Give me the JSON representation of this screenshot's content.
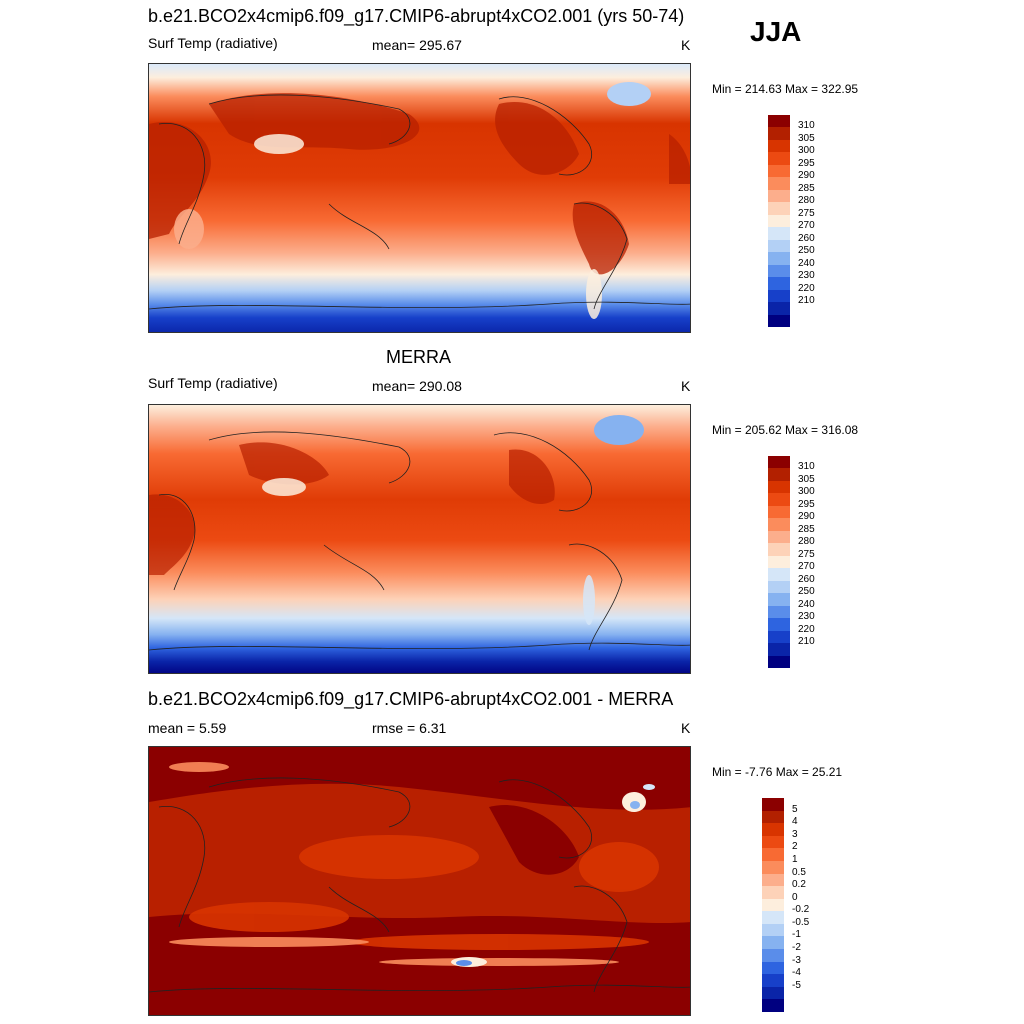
{
  "season": "JJA",
  "panels": [
    {
      "id": "model",
      "title": "b.e21.BCO2x4cmip6.f09_g17.CMIP6-abrupt4xCO2.001 (yrs 50-74)",
      "left_label": "Surf Temp (radiative)",
      "center_label": "mean= 295.67",
      "unit": "K",
      "minmax": "Min = 214.63 Max = 322.95",
      "colorbar": {
        "labels": [
          "310",
          "305",
          "300",
          "295",
          "290",
          "285",
          "280",
          "275",
          "270",
          "260",
          "250",
          "240",
          "230",
          "220",
          "210"
        ],
        "colors": [
          "#8b0000",
          "#b22000",
          "#d83400",
          "#ec4a12",
          "#f86a33",
          "#fb8c5c",
          "#fcae8c",
          "#fdd2b8",
          "#fdeedd",
          "#d5e6f8",
          "#b3d0f5",
          "#86b2f0",
          "#5a8dea",
          "#2e64e0",
          "#1740c9",
          "#0a24a8",
          "#000080"
        ]
      }
    },
    {
      "id": "obs",
      "title": "MERRA",
      "left_label": "Surf Temp (radiative)",
      "center_label": "mean= 290.08",
      "unit": "K",
      "minmax": "Min = 205.62 Max = 316.08",
      "colorbar": {
        "labels": [
          "310",
          "305",
          "300",
          "295",
          "290",
          "285",
          "280",
          "275",
          "270",
          "260",
          "250",
          "240",
          "230",
          "220",
          "210"
        ],
        "colors": [
          "#8b0000",
          "#b22000",
          "#d83400",
          "#ec4a12",
          "#f86a33",
          "#fb8c5c",
          "#fcae8c",
          "#fdd2b8",
          "#fdeedd",
          "#d5e6f8",
          "#b3d0f5",
          "#86b2f0",
          "#5a8dea",
          "#2e64e0",
          "#1740c9",
          "#0a24a8",
          "#000080"
        ]
      }
    },
    {
      "id": "diff",
      "title": "b.e21.BCO2x4cmip6.f09_g17.CMIP6-abrupt4xCO2.001 - MERRA",
      "left_label": "mean =   5.59",
      "center_label": "rmse =   6.31",
      "unit": "K",
      "minmax": "Min =  -7.76 Max =  25.21",
      "colorbar": {
        "labels": [
          "5",
          "4",
          "3",
          "2",
          "1",
          "0.5",
          "0.2",
          "0",
          "-0.2",
          "-0.5",
          "-1",
          "-2",
          "-3",
          "-4",
          "-5"
        ],
        "colors": [
          "#8b0000",
          "#b22000",
          "#d83400",
          "#ec4a12",
          "#f86a33",
          "#fb8c5c",
          "#fcae8c",
          "#fdd2b8",
          "#fdeedd",
          "#d5e6f8",
          "#b3d0f5",
          "#86b2f0",
          "#5a8dea",
          "#2e64e0",
          "#1740c9",
          "#0a24a8",
          "#000080"
        ]
      }
    }
  ]
}
